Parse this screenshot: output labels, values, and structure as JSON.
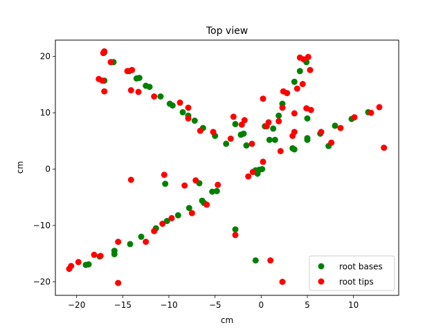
{
  "chart_data": {
    "type": "scatter",
    "title": "Top view",
    "xlabel": "cm",
    "ylabel": "cm",
    "xlim": [
      -22.3,
      14.9
    ],
    "ylim": [
      -22.4,
      22.9
    ],
    "xticks": [
      -20,
      -15,
      -10,
      -5,
      0,
      5,
      10
    ],
    "yticks": [
      -20,
      -10,
      0,
      10,
      20
    ],
    "xtick_labels": [
      "−20",
      "−15",
      "−10",
      "−5",
      "0",
      "5",
      "10"
    ],
    "ytick_labels": [
      "−20",
      "−10",
      "0",
      "10",
      "20"
    ],
    "grid": false,
    "legend_position": "lower-right",
    "series": [
      {
        "name": "root bases",
        "color": "#008000",
        "points": [
          [
            -17.0,
            20.7
          ],
          [
            -16.0,
            19.0
          ],
          [
            -17.0,
            15.7
          ],
          [
            -14.3,
            17.4
          ],
          [
            -13.5,
            16.1
          ],
          [
            -13.2,
            16.2
          ],
          [
            -12.5,
            14.8
          ],
          [
            -12.1,
            14.6
          ],
          [
            -10.9,
            12.9
          ],
          [
            -9.9,
            11.6
          ],
          [
            -9.6,
            11.3
          ],
          [
            -8.5,
            10.1
          ],
          [
            -7.9,
            9.5
          ],
          [
            -7.2,
            8.6
          ],
          [
            -6.3,
            7.3
          ],
          [
            -5.0,
            5.9
          ],
          [
            -3.8,
            4.5
          ],
          [
            -2.8,
            8.0
          ],
          [
            -2.2,
            6.1
          ],
          [
            -1.9,
            6.3
          ],
          [
            -1.6,
            4.2
          ],
          [
            0.4,
            7.6
          ],
          [
            0.9,
            5.2
          ],
          [
            1.3,
            7.2
          ],
          [
            1.5,
            5.2
          ],
          [
            1.9,
            9.5
          ],
          [
            2.3,
            11.6
          ],
          [
            3.4,
            3.7
          ],
          [
            3.6,
            3.5
          ],
          [
            3.6,
            15.5
          ],
          [
            4.2,
            17.4
          ],
          [
            4.9,
            19.0
          ],
          [
            5.0,
            9.0
          ],
          [
            5.0,
            5.2
          ],
          [
            5.0,
            5.5
          ],
          [
            6.4,
            6.3
          ],
          [
            7.3,
            4.1
          ],
          [
            8.0,
            7.7
          ],
          [
            9.8,
            8.9
          ],
          [
            11.6,
            10.1
          ],
          [
            -0.6,
            -0.2
          ],
          [
            -0.4,
            -0.8
          ],
          [
            -0.2,
            -0.1
          ],
          [
            0.1,
            0.0
          ],
          [
            -10.4,
            -2.6
          ],
          [
            -6.7,
            -2.5
          ],
          [
            -5.3,
            -4.0
          ],
          [
            -4.8,
            -3.9
          ],
          [
            -6.4,
            -5.6
          ],
          [
            -6.2,
            -6.0
          ],
          [
            -7.8,
            -6.9
          ],
          [
            -9.0,
            -8.2
          ],
          [
            -10.2,
            -9.2
          ],
          [
            -11.4,
            -10.5
          ],
          [
            -13.0,
            -12.0
          ],
          [
            -14.2,
            -13.3
          ],
          [
            -15.9,
            -14.5
          ],
          [
            -15.9,
            -15.1
          ],
          [
            -17.5,
            -15.5
          ],
          [
            -19.0,
            -17.0
          ],
          [
            -18.7,
            -16.9
          ],
          [
            -2.8,
            -10.7
          ],
          [
            -0.6,
            -16.2
          ]
        ]
      },
      {
        "name": "root tips",
        "color": "#ff0000",
        "points": [
          [
            -17.0,
            20.9
          ],
          [
            -17.1,
            20.6
          ],
          [
            -16.3,
            19.0
          ],
          [
            -17.6,
            16.0
          ],
          [
            -17.2,
            15.7
          ],
          [
            -17.0,
            13.8
          ],
          [
            -14.5,
            17.4
          ],
          [
            -14.0,
            17.6
          ],
          [
            -14.1,
            14.0
          ],
          [
            -13.3,
            13.7
          ],
          [
            -11.6,
            12.9
          ],
          [
            -8.8,
            11.8
          ],
          [
            -7.9,
            10.9
          ],
          [
            -7.9,
            9.0
          ],
          [
            -6.6,
            6.8
          ],
          [
            -5.2,
            6.6
          ],
          [
            -3.3,
            5.4
          ],
          [
            -3.0,
            9.3
          ],
          [
            -2.1,
            7.9
          ],
          [
            -1.8,
            8.7
          ],
          [
            -1.0,
            4.5
          ],
          [
            0.2,
            12.5
          ],
          [
            0.6,
            7.6
          ],
          [
            0.8,
            8.3
          ],
          [
            1.9,
            8.5
          ],
          [
            2.1,
            3.2
          ],
          [
            2.3,
            10.9
          ],
          [
            2.4,
            13.8
          ],
          [
            2.8,
            13.5
          ],
          [
            3.4,
            5.9
          ],
          [
            3.6,
            6.6
          ],
          [
            3.6,
            9.9
          ],
          [
            3.9,
            14.3
          ],
          [
            4.2,
            19.8
          ],
          [
            4.6,
            19.5
          ],
          [
            4.5,
            15.1
          ],
          [
            4.9,
            10.8
          ],
          [
            5.1,
            19.9
          ],
          [
            5.3,
            17.6
          ],
          [
            5.4,
            10.5
          ],
          [
            6.5,
            6.6
          ],
          [
            7.6,
            4.7
          ],
          [
            8.6,
            7.3
          ],
          [
            10.1,
            9.2
          ],
          [
            11.9,
            10.0
          ],
          [
            12.8,
            11.0
          ],
          [
            13.3,
            3.8
          ],
          [
            -1.4,
            -1.3
          ],
          [
            -0.9,
            -0.5
          ],
          [
            0.2,
            1.3
          ],
          [
            -10.5,
            -1.0
          ],
          [
            -14.1,
            -1.9
          ],
          [
            -8.3,
            -2.9
          ],
          [
            -7.1,
            -2.0
          ],
          [
            -4.7,
            -2.8
          ],
          [
            -5.9,
            -6.3
          ],
          [
            -7.5,
            -7.8
          ],
          [
            -9.7,
            -8.7
          ],
          [
            -10.7,
            -9.7
          ],
          [
            -11.6,
            -11.0
          ],
          [
            -12.5,
            -12.9
          ],
          [
            -15.5,
            -12.9
          ],
          [
            -18.1,
            -15.2
          ],
          [
            -17.4,
            -15.4
          ],
          [
            -19.8,
            -16.5
          ],
          [
            -20.6,
            -17.2
          ],
          [
            -20.8,
            -17.7
          ],
          [
            -2.8,
            -11.7
          ],
          [
            -15.5,
            -20.2
          ],
          [
            1.0,
            -16.2
          ],
          [
            2.3,
            -20.0
          ]
        ]
      }
    ]
  }
}
